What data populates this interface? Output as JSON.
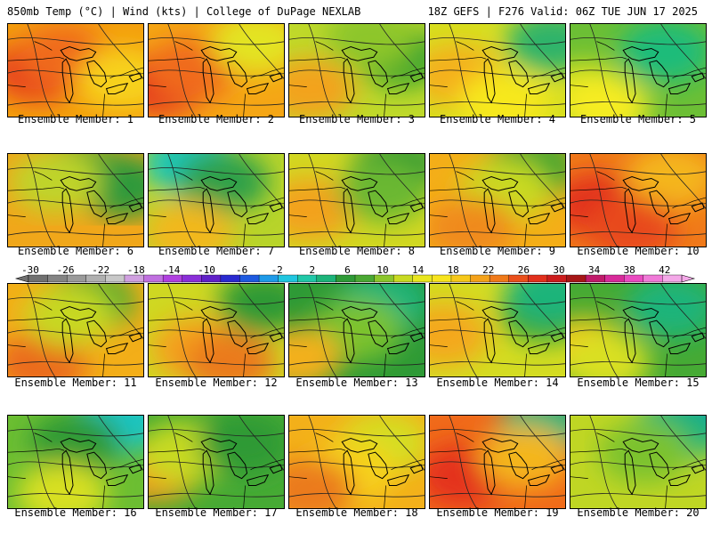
{
  "header": {
    "left": "850mb Temp (°C) | Wind (kts) | College of DuPage NEXLAB",
    "right": "18Z GEFS | F276 Valid: 06Z TUE JUN 17 2025"
  },
  "panels": [
    {
      "label": "Ensemble Member: 1",
      "base": "#f4a00e",
      "blobs": [
        [
          "#e63a1c",
          0.22,
          0.5
        ],
        [
          "#f06a1a",
          0.4,
          0.35
        ],
        [
          "#f7d21a",
          0.85,
          0.6
        ]
      ]
    },
    {
      "label": "Ensemble Member: 2",
      "base": "#f5a615",
      "blobs": [
        [
          "#e32a1c",
          0.12,
          0.65
        ],
        [
          "#f06a1a",
          0.3,
          0.5
        ],
        [
          "#e3e420",
          0.8,
          0.2
        ]
      ]
    },
    {
      "label": "Ensemble Member: 3",
      "base": "#bfd92a",
      "blobs": [
        [
          "#f3a31a",
          0.15,
          0.7
        ],
        [
          "#3ea62e",
          0.82,
          0.35
        ],
        [
          "#8dc62c",
          0.6,
          0.15
        ]
      ]
    },
    {
      "label": "Ensemble Member: 4",
      "base": "#d7df20",
      "blobs": [
        [
          "#f4b01a",
          0.2,
          0.55
        ],
        [
          "#2eb36a",
          0.9,
          0.2
        ],
        [
          "#f7e81e",
          0.55,
          0.85
        ]
      ]
    },
    {
      "label": "Ensemble Member: 5",
      "base": "#6cbf35",
      "blobs": [
        [
          "#1fbc7a",
          0.7,
          0.3
        ],
        [
          "#d7e020",
          0.1,
          0.75
        ],
        [
          "#f6ec20",
          0.25,
          0.9
        ]
      ]
    },
    {
      "label": "Ensemble Member: 6",
      "base": "#f0a71a",
      "blobs": [
        [
          "#4aa833",
          0.55,
          0.2
        ],
        [
          "#2d9a3a",
          0.85,
          0.35
        ],
        [
          "#bfd42a",
          0.35,
          0.3
        ]
      ]
    },
    {
      "label": "Ensemble Member: 7",
      "base": "#b8d42a",
      "blobs": [
        [
          "#1fc6b8",
          0.3,
          0.1
        ],
        [
          "#2fa04a",
          0.55,
          0.3
        ],
        [
          "#f2b81a",
          0.3,
          0.85
        ]
      ]
    },
    {
      "label": "Ensemble Member: 8",
      "base": "#d2d822",
      "blobs": [
        [
          "#f3a21a",
          0.15,
          0.6
        ],
        [
          "#2e9a36",
          0.8,
          0.15
        ],
        [
          "#6bb830",
          0.7,
          0.4
        ]
      ]
    },
    {
      "label": "Ensemble Member: 9",
      "base": "#f4ae18",
      "blobs": [
        [
          "#3aa632",
          0.75,
          0.15
        ],
        [
          "#c9da22",
          0.55,
          0.4
        ],
        [
          "#f08a1a",
          0.3,
          0.8
        ]
      ]
    },
    {
      "label": "Ensemble Member: 10",
      "base": "#f07a1a",
      "blobs": [
        [
          "#e2301c",
          0.2,
          0.55
        ],
        [
          "#f4b61a",
          0.75,
          0.25
        ],
        [
          "#e84a1c",
          0.45,
          0.8
        ]
      ]
    },
    {
      "label": "Ensemble Member: 11",
      "base": "#f3ae18",
      "blobs": [
        [
          "#3eaa30",
          0.6,
          0.2
        ],
        [
          "#eb6a1a",
          0.25,
          0.85
        ],
        [
          "#c7d824",
          0.45,
          0.35
        ]
      ]
    },
    {
      "label": "Ensemble Member: 12",
      "base": "#cfd822",
      "blobs": [
        [
          "#f4a21a",
          0.35,
          0.7
        ],
        [
          "#2e9a36",
          0.85,
          0.2
        ],
        [
          "#eb7a1a",
          0.6,
          0.85
        ]
      ]
    },
    {
      "label": "Ensemble Member: 13",
      "base": "#2e9a36",
      "blobs": [
        [
          "#1cb47a",
          0.7,
          0.2
        ],
        [
          "#7cc22e",
          0.5,
          0.5
        ],
        [
          "#f3b01a",
          0.05,
          0.8
        ]
      ]
    },
    {
      "label": "Ensemble Member: 14",
      "base": "#d4dc22",
      "blobs": [
        [
          "#3aa632",
          0.85,
          0.3
        ],
        [
          "#f4a81a",
          0.1,
          0.55
        ],
        [
          "#1cb47a",
          0.9,
          0.1
        ]
      ]
    },
    {
      "label": "Ensemble Member: 15",
      "base": "#46aa34",
      "blobs": [
        [
          "#1cb47a",
          0.75,
          0.25
        ],
        [
          "#f4c41a",
          0.1,
          0.7
        ],
        [
          "#d9e020",
          0.25,
          0.85
        ]
      ]
    },
    {
      "label": "Ensemble Member: 16",
      "base": "#6cbe32",
      "blobs": [
        [
          "#1fc4c0",
          0.85,
          0.05
        ],
        [
          "#2e9a36",
          0.5,
          0.3
        ],
        [
          "#d8e020",
          0.4,
          0.85
        ]
      ]
    },
    {
      "label": "Ensemble Member: 17",
      "base": "#46aa34",
      "blobs": [
        [
          "#f39a1a",
          0.05,
          0.6
        ],
        [
          "#c8da22",
          0.25,
          0.4
        ],
        [
          "#2e9a36",
          0.7,
          0.3
        ]
      ]
    },
    {
      "label": "Ensemble Member: 18",
      "base": "#f3b01a",
      "blobs": [
        [
          "#d4de22",
          0.7,
          0.3
        ],
        [
          "#f6d21a",
          0.45,
          0.6
        ],
        [
          "#eb7a1a",
          0.15,
          0.8
        ]
      ]
    },
    {
      "label": "Ensemble Member: 19",
      "base": "#f06a1a",
      "blobs": [
        [
          "#e4301c",
          0.25,
          0.65
        ],
        [
          "#1cb47a",
          0.85,
          0.1
        ],
        [
          "#f4b61a",
          0.7,
          0.45
        ]
      ]
    },
    {
      "label": "Ensemble Member: 20",
      "base": "#bfd624",
      "blobs": [
        [
          "#1f8cc8",
          0.95,
          0.0
        ],
        [
          "#1cb47a",
          0.8,
          0.15
        ],
        [
          "#7cc22e",
          0.55,
          0.4
        ]
      ]
    }
  ],
  "colorbar": {
    "ticks": [
      "-30",
      "-26",
      "-22",
      "-18",
      "-14",
      "-10",
      "-6",
      "-2",
      "2",
      "6",
      "10",
      "14",
      "18",
      "22",
      "26",
      "30",
      "34",
      "38",
      "42"
    ],
    "colors": [
      "#707070",
      "#848484",
      "#9a9a9a",
      "#b0b0b0",
      "#c8c8c8",
      "#d0a0e0",
      "#c070e0",
      "#b040e0",
      "#8a2fd8",
      "#6020c8",
      "#2a2ad0",
      "#1e5ae0",
      "#1e9ae8",
      "#20c6e0",
      "#20c8a8",
      "#1cb47a",
      "#2e9a36",
      "#4aa833",
      "#8cc62c",
      "#c8da22",
      "#e9e61e",
      "#f7e41e",
      "#f6c81a",
      "#f4a21a",
      "#f07a1a",
      "#ea501c",
      "#e2301c",
      "#cc1c1c",
      "#a61616",
      "#c01a6a",
      "#d82a9a",
      "#ea4ac0",
      "#f07ad8",
      "#f4a8e8"
    ]
  }
}
